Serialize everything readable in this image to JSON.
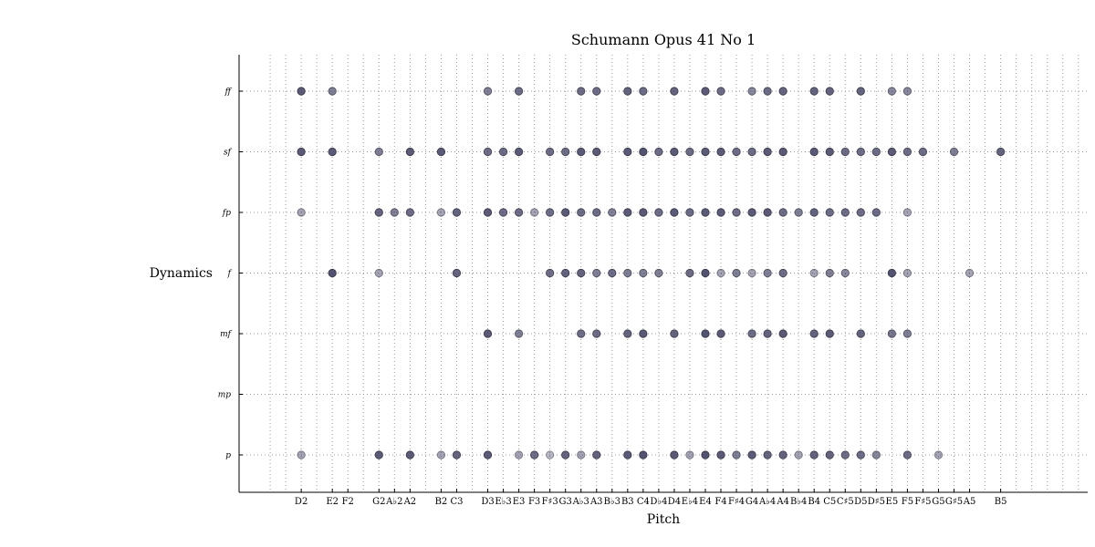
{
  "chart_data": {
    "type": "scatter",
    "title": "Schumann Opus 41 No 1",
    "xlabel": "Pitch",
    "ylabel": "Dynamics",
    "x_categories": [
      "D2",
      "E2",
      "F2",
      "G2",
      "A♭2",
      "A2",
      "B2",
      "C3",
      "D3",
      "E♭3",
      "E3",
      "F3",
      "F♯3",
      "G3",
      "A♭3",
      "A3",
      "B♭3",
      "B3",
      "C4",
      "D♭4",
      "D4",
      "E♭4",
      "E4",
      "F4",
      "F♯4",
      "G4",
      "A♭4",
      "A4",
      "B♭4",
      "B4",
      "C5",
      "C♯5",
      "D5",
      "D♯5",
      "E5",
      "F5",
      "F♯5",
      "G5",
      "G♯5",
      "A5",
      "B5"
    ],
    "x_midi": [
      38,
      40,
      41,
      43,
      44,
      45,
      47,
      48,
      50,
      51,
      52,
      53,
      54,
      55,
      56,
      57,
      58,
      59,
      60,
      61,
      62,
      63,
      64,
      65,
      66,
      67,
      68,
      69,
      70,
      71,
      72,
      73,
      74,
      75,
      76,
      77,
      78,
      79,
      80,
      81,
      83
    ],
    "y_categories": [
      "p",
      "mp",
      "mf",
      "f",
      "fp",
      "sf",
      "ff"
    ],
    "grid": true,
    "marker_color": "#4a4a6a",
    "series": [
      {
        "dynamic": "ff",
        "points": [
          [
            38,
            0.9
          ],
          [
            40,
            0.7
          ],
          [
            50,
            0.7
          ],
          [
            52,
            0.8
          ],
          [
            56,
            0.8
          ],
          [
            57,
            0.8
          ],
          [
            59,
            0.85
          ],
          [
            60,
            0.8
          ],
          [
            62,
            0.85
          ],
          [
            64,
            0.9
          ],
          [
            65,
            0.8
          ],
          [
            67,
            0.65
          ],
          [
            68,
            0.8
          ],
          [
            69,
            0.85
          ],
          [
            71,
            0.85
          ],
          [
            72,
            0.85
          ],
          [
            74,
            0.85
          ],
          [
            76,
            0.65
          ],
          [
            77,
            0.65
          ]
        ]
      },
      {
        "dynamic": "sf",
        "points": [
          [
            38,
            0.9
          ],
          [
            40,
            0.9
          ],
          [
            43,
            0.7
          ],
          [
            45,
            0.9
          ],
          [
            47,
            0.9
          ],
          [
            50,
            0.8
          ],
          [
            51,
            0.8
          ],
          [
            52,
            0.9
          ],
          [
            54,
            0.8
          ],
          [
            55,
            0.8
          ],
          [
            56,
            0.9
          ],
          [
            57,
            0.9
          ],
          [
            59,
            0.9
          ],
          [
            60,
            0.95
          ],
          [
            61,
            0.8
          ],
          [
            62,
            0.9
          ],
          [
            63,
            0.8
          ],
          [
            64,
            0.9
          ],
          [
            65,
            0.9
          ],
          [
            66,
            0.8
          ],
          [
            67,
            0.8
          ],
          [
            68,
            0.9
          ],
          [
            69,
            0.9
          ],
          [
            71,
            0.9
          ],
          [
            72,
            0.9
          ],
          [
            73,
            0.8
          ],
          [
            74,
            0.8
          ],
          [
            75,
            0.8
          ],
          [
            76,
            0.9
          ],
          [
            77,
            0.8
          ],
          [
            78,
            0.8
          ],
          [
            80,
            0.7
          ],
          [
            83,
            0.85
          ]
        ]
      },
      {
        "dynamic": "fp",
        "points": [
          [
            38,
            0.5
          ],
          [
            43,
            0.85
          ],
          [
            44,
            0.7
          ],
          [
            45,
            0.8
          ],
          [
            47,
            0.5
          ],
          [
            48,
            0.85
          ],
          [
            50,
            0.9
          ],
          [
            51,
            0.8
          ],
          [
            52,
            0.8
          ],
          [
            53,
            0.5
          ],
          [
            54,
            0.8
          ],
          [
            55,
            0.9
          ],
          [
            56,
            0.8
          ],
          [
            57,
            0.8
          ],
          [
            58,
            0.7
          ],
          [
            59,
            0.9
          ],
          [
            60,
            0.9
          ],
          [
            61,
            0.8
          ],
          [
            62,
            0.9
          ],
          [
            63,
            0.8
          ],
          [
            64,
            0.9
          ],
          [
            65,
            0.9
          ],
          [
            66,
            0.8
          ],
          [
            67,
            0.9
          ],
          [
            68,
            0.9
          ],
          [
            69,
            0.8
          ],
          [
            70,
            0.7
          ],
          [
            71,
            0.85
          ],
          [
            72,
            0.8
          ],
          [
            73,
            0.8
          ],
          [
            74,
            0.8
          ],
          [
            75,
            0.8
          ],
          [
            77,
            0.5
          ]
        ]
      },
      {
        "dynamic": "f",
        "points": [
          [
            40,
            0.95
          ],
          [
            43,
            0.5
          ],
          [
            48,
            0.85
          ],
          [
            54,
            0.8
          ],
          [
            55,
            0.85
          ],
          [
            56,
            0.85
          ],
          [
            57,
            0.7
          ],
          [
            58,
            0.8
          ],
          [
            59,
            0.7
          ],
          [
            60,
            0.7
          ],
          [
            61,
            0.7
          ],
          [
            63,
            0.8
          ],
          [
            64,
            0.95
          ],
          [
            65,
            0.5
          ],
          [
            66,
            0.7
          ],
          [
            67,
            0.5
          ],
          [
            68,
            0.7
          ],
          [
            69,
            0.8
          ],
          [
            71,
            0.5
          ],
          [
            72,
            0.7
          ],
          [
            73,
            0.65
          ],
          [
            76,
            0.95
          ],
          [
            77,
            0.5
          ],
          [
            81,
            0.5
          ]
        ]
      },
      {
        "dynamic": "mf",
        "points": [
          [
            50,
            0.9
          ],
          [
            52,
            0.7
          ],
          [
            56,
            0.8
          ],
          [
            57,
            0.8
          ],
          [
            59,
            0.85
          ],
          [
            60,
            0.9
          ],
          [
            62,
            0.85
          ],
          [
            64,
            0.95
          ],
          [
            65,
            0.9
          ],
          [
            67,
            0.8
          ],
          [
            68,
            0.85
          ],
          [
            69,
            0.9
          ],
          [
            71,
            0.85
          ],
          [
            72,
            0.9
          ],
          [
            74,
            0.85
          ],
          [
            76,
            0.75
          ],
          [
            77,
            0.7
          ]
        ]
      },
      {
        "dynamic": "mp",
        "points": []
      },
      {
        "dynamic": "p",
        "points": [
          [
            38,
            0.5
          ],
          [
            43,
            0.9
          ],
          [
            45,
            0.9
          ],
          [
            47,
            0.5
          ],
          [
            48,
            0.85
          ],
          [
            50,
            0.9
          ],
          [
            52,
            0.5
          ],
          [
            53,
            0.8
          ],
          [
            54,
            0.4
          ],
          [
            55,
            0.85
          ],
          [
            56,
            0.5
          ],
          [
            57,
            0.85
          ],
          [
            59,
            0.9
          ],
          [
            60,
            0.95
          ],
          [
            62,
            0.9
          ],
          [
            63,
            0.5
          ],
          [
            64,
            0.95
          ],
          [
            65,
            0.9
          ],
          [
            66,
            0.7
          ],
          [
            67,
            0.9
          ],
          [
            68,
            0.85
          ],
          [
            69,
            0.85
          ],
          [
            70,
            0.5
          ],
          [
            71,
            0.85
          ],
          [
            72,
            0.85
          ],
          [
            73,
            0.8
          ],
          [
            74,
            0.8
          ],
          [
            75,
            0.65
          ],
          [
            77,
            0.8
          ],
          [
            79,
            0.5
          ]
        ]
      }
    ]
  }
}
